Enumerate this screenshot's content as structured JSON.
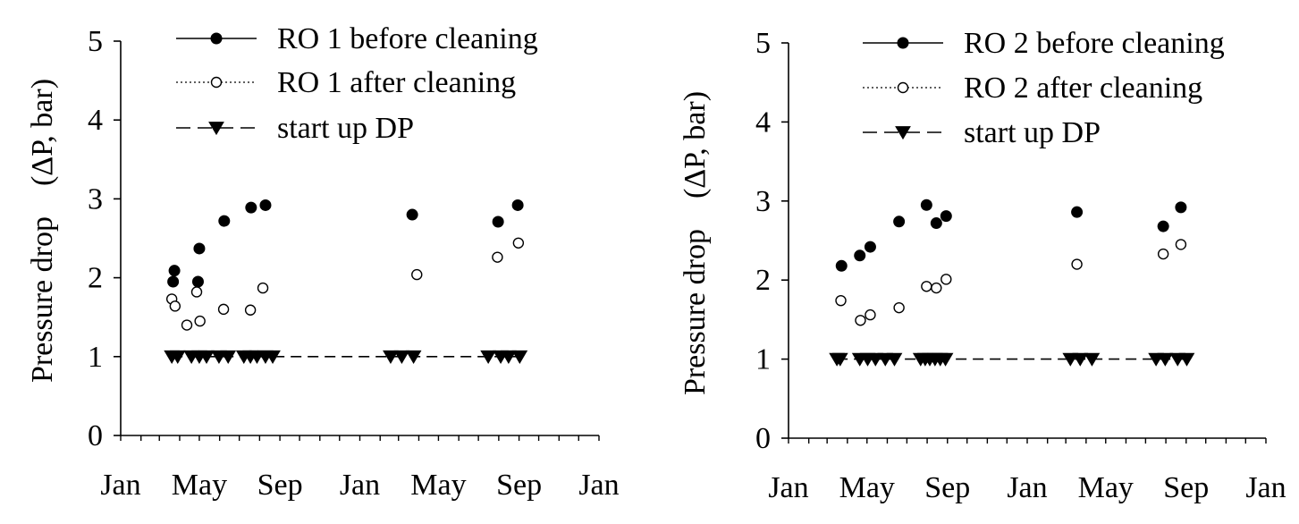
{
  "chart_data": [
    {
      "type": "scatter",
      "ylabel": "Pressure drop    (ΔP, bar)",
      "xlabel": "",
      "ylim": [
        0,
        5
      ],
      "yticks": [
        "0",
        "1",
        "2",
        "3",
        "4",
        "5"
      ],
      "xticks": [
        "Jan",
        "May",
        "Sep",
        "Jan",
        "May",
        "Sep",
        "Jan"
      ],
      "legend_position": "top-right",
      "series": [
        {
          "name": "RO 1 before cleaning",
          "marker": "filled-circle",
          "points": [
            {
              "x": "2010-03-22",
              "y": 1.95
            },
            {
              "x": "2010-03-24",
              "y": 2.09
            },
            {
              "x": "2010-04-29",
              "y": 1.95
            },
            {
              "x": "2010-05-01",
              "y": 2.37
            },
            {
              "x": "2010-06-08",
              "y": 2.72
            },
            {
              "x": "2010-07-19",
              "y": 2.89
            },
            {
              "x": "2010-08-10",
              "y": 2.92
            },
            {
              "x": "2011-03-22",
              "y": 2.8
            },
            {
              "x": "2011-07-31",
              "y": 2.71
            },
            {
              "x": "2011-08-30",
              "y": 2.92
            }
          ]
        },
        {
          "name": "RO 1 after cleaning",
          "marker": "open-circle",
          "points": [
            {
              "x": "2010-03-20",
              "y": 1.73
            },
            {
              "x": "2010-03-25",
              "y": 1.64
            },
            {
              "x": "2010-04-12",
              "y": 1.4
            },
            {
              "x": "2010-04-27",
              "y": 1.82
            },
            {
              "x": "2010-05-02",
              "y": 1.45
            },
            {
              "x": "2010-06-07",
              "y": 1.6
            },
            {
              "x": "2010-07-18",
              "y": 1.59
            },
            {
              "x": "2010-08-06",
              "y": 1.87
            },
            {
              "x": "2011-03-29",
              "y": 2.04
            },
            {
              "x": "2011-07-30",
              "y": 2.26
            },
            {
              "x": "2011-08-31",
              "y": 2.44
            }
          ]
        },
        {
          "name": "start up DP",
          "marker": "filled-triangle-down",
          "line": "dashed",
          "points": [
            {
              "x": "2010-03-20",
              "y": 1
            },
            {
              "x": "2010-03-29",
              "y": 1
            },
            {
              "x": "2010-04-19",
              "y": 1
            },
            {
              "x": "2010-05-01",
              "y": 1
            },
            {
              "x": "2010-05-12",
              "y": 1
            },
            {
              "x": "2010-05-31",
              "y": 1
            },
            {
              "x": "2010-06-14",
              "y": 1
            },
            {
              "x": "2010-07-08",
              "y": 1
            },
            {
              "x": "2010-07-18",
              "y": 1
            },
            {
              "x": "2010-07-28",
              "y": 1
            },
            {
              "x": "2010-08-10",
              "y": 1
            },
            {
              "x": "2010-08-21",
              "y": 1
            },
            {
              "x": "2011-02-17",
              "y": 1
            },
            {
              "x": "2011-03-06",
              "y": 1
            },
            {
              "x": "2011-03-24",
              "y": 1
            },
            {
              "x": "2011-07-16",
              "y": 1
            },
            {
              "x": "2011-08-04",
              "y": 1
            },
            {
              "x": "2011-08-16",
              "y": 1
            },
            {
              "x": "2011-09-02",
              "y": 1
            }
          ]
        }
      ]
    },
    {
      "type": "scatter",
      "ylabel": "Pressure drop    (ΔP, bar)",
      "xlabel": "",
      "ylim": [
        0,
        5
      ],
      "yticks": [
        "0",
        "1",
        "2",
        "3",
        "4",
        "5"
      ],
      "xticks": [
        "Jan",
        "May",
        "Sep",
        "Jan",
        "May",
        "Sep",
        "Jan"
      ],
      "legend_position": "top-right",
      "series": [
        {
          "name": "RO 2 before cleaning",
          "marker": "filled-circle",
          "points": [
            {
              "x": "2010-03-23",
              "y": 2.18
            },
            {
              "x": "2010-04-20",
              "y": 2.31
            },
            {
              "x": "2010-05-06",
              "y": 2.42
            },
            {
              "x": "2010-06-19",
              "y": 2.74
            },
            {
              "x": "2010-07-31",
              "y": 2.95
            },
            {
              "x": "2010-08-15",
              "y": 2.72
            },
            {
              "x": "2010-08-30",
              "y": 2.81
            },
            {
              "x": "2011-03-18",
              "y": 2.86
            },
            {
              "x": "2011-07-28",
              "y": 2.68
            },
            {
              "x": "2011-08-24",
              "y": 2.92
            }
          ]
        },
        {
          "name": "RO 2 after cleaning",
          "marker": "open-circle",
          "points": [
            {
              "x": "2010-03-22",
              "y": 1.74
            },
            {
              "x": "2010-04-21",
              "y": 1.49
            },
            {
              "x": "2010-05-06",
              "y": 1.56
            },
            {
              "x": "2010-06-19",
              "y": 1.65
            },
            {
              "x": "2010-07-31",
              "y": 1.92
            },
            {
              "x": "2010-08-15",
              "y": 1.9
            },
            {
              "x": "2010-08-30",
              "y": 2.01
            },
            {
              "x": "2011-03-18",
              "y": 2.2
            },
            {
              "x": "2011-07-28",
              "y": 2.33
            },
            {
              "x": "2011-08-24",
              "y": 2.45
            }
          ]
        },
        {
          "name": "start up DP",
          "marker": "filled-triangle-down",
          "line": "dashed",
          "points": [
            {
              "x": "2010-03-16",
              "y": 1
            },
            {
              "x": "2010-03-21",
              "y": 1
            },
            {
              "x": "2010-04-20",
              "y": 1
            },
            {
              "x": "2010-05-02",
              "y": 1
            },
            {
              "x": "2010-05-14",
              "y": 1
            },
            {
              "x": "2010-05-29",
              "y": 1
            },
            {
              "x": "2010-06-12",
              "y": 1
            },
            {
              "x": "2010-07-22",
              "y": 1
            },
            {
              "x": "2010-07-29",
              "y": 1
            },
            {
              "x": "2010-08-05",
              "y": 1
            },
            {
              "x": "2010-08-13",
              "y": 1
            },
            {
              "x": "2010-08-21",
              "y": 1
            },
            {
              "x": "2010-08-29",
              "y": 1
            },
            {
              "x": "2011-03-08",
              "y": 1
            },
            {
              "x": "2011-03-23",
              "y": 1
            },
            {
              "x": "2011-04-10",
              "y": 1
            },
            {
              "x": "2011-07-17",
              "y": 1
            },
            {
              "x": "2011-07-31",
              "y": 1
            },
            {
              "x": "2011-08-19",
              "y": 1
            },
            {
              "x": "2011-09-02",
              "y": 1
            }
          ]
        }
      ]
    }
  ]
}
